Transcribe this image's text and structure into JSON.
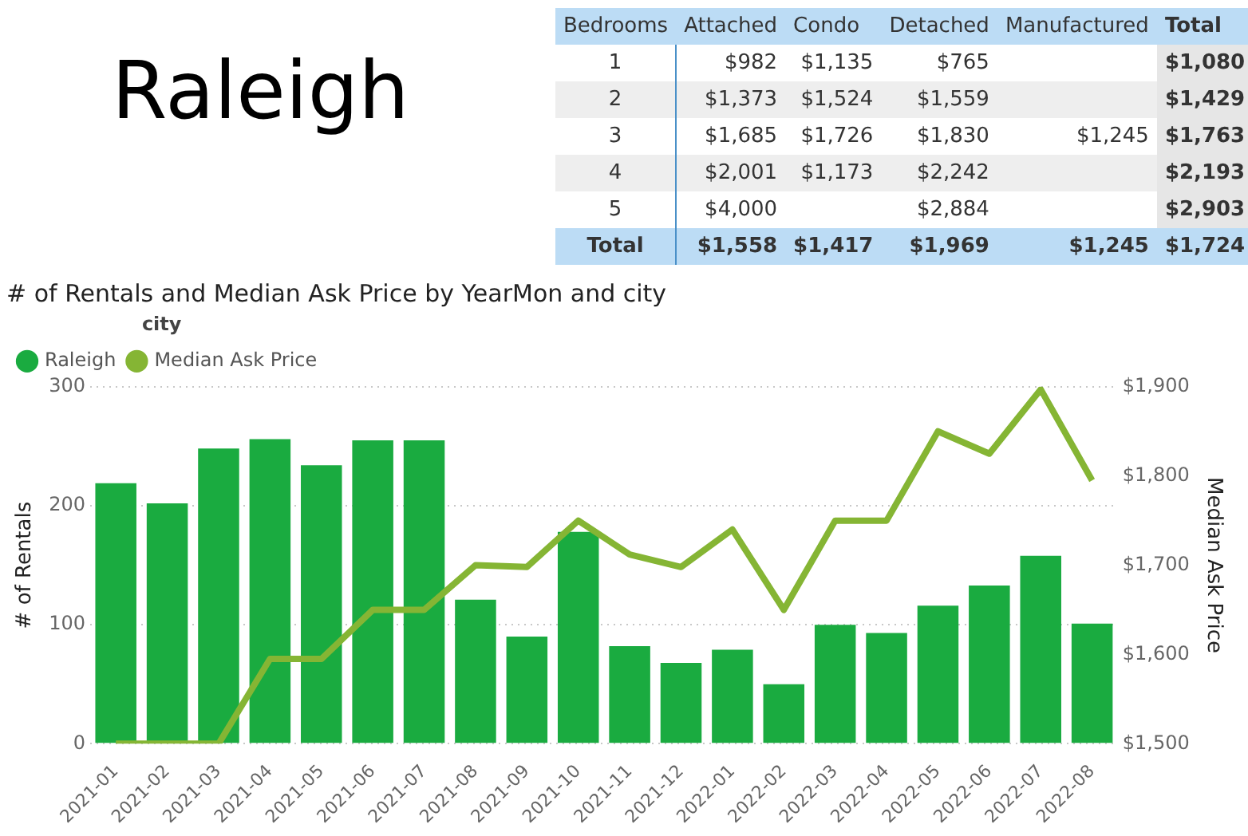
{
  "chart_data": [
    {
      "type": "other",
      "title": "Raleigh"
    },
    {
      "type": "heatmap",
      "ylabel": "Bedrooms",
      "categories": [
        "Attached",
        "Condo",
        "Detached",
        "Manufactured",
        "Total"
      ],
      "y_categories": [
        "1",
        "2",
        "3",
        "4",
        "5",
        "Total"
      ],
      "cells": [
        [
          "$982",
          "$1,135",
          "$765",
          null,
          "$1,080"
        ],
        [
          "$1,373",
          "$1,524",
          "$1,559",
          null,
          "$1,429"
        ],
        [
          "$1,685",
          "$1,726",
          "$1,830",
          "$1,245",
          "$1,763"
        ],
        [
          "$2,001",
          "$1,173",
          "$2,242",
          null,
          "$2,193"
        ],
        [
          "$4,000",
          null,
          "$2,884",
          null,
          "$2,903"
        ],
        [
          "$1,558",
          "$1,417",
          "$1,969",
          "$1,245",
          "$1,724"
        ]
      ]
    },
    {
      "type": "bar",
      "title": "# of Rentals and Median Ask Price by YearMon and city",
      "ylabel": "# of Rentals",
      "y2label": "Median Ask Price",
      "legend_title": "city",
      "legend": "top left",
      "grid": "y",
      "marker": "none",
      "categories": [
        "2021-01",
        "2021-02",
        "2021-03",
        "2021-04",
        "2021-05",
        "2021-06",
        "2021-07",
        "2021-08",
        "2021-09",
        "2021-10",
        "2021-11",
        "2021-12",
        "2022-01",
        "2022-02",
        "2022-03",
        "2022-04",
        "2022-05",
        "2022-06",
        "2022-07",
        "2022-08"
      ],
      "series": [
        {
          "name": "Raleigh",
          "type": "bar",
          "color": "#1aab40",
          "values": [
            219,
            202,
            248,
            256,
            234,
            255,
            255,
            121,
            90,
            178,
            82,
            68,
            79,
            50,
            100,
            93,
            116,
            133,
            158,
            101
          ]
        },
        {
          "name": "Median Ask Price",
          "type": "line",
          "axis": "y2",
          "color": "#85b534",
          "values": [
            1500,
            1500,
            1500,
            1595,
            1595,
            1650,
            1650,
            1700,
            1698,
            1750,
            1712,
            1698,
            1740,
            1650,
            1750,
            1750,
            1850,
            1825,
            1897,
            1795
          ]
        }
      ],
      "ylim": [
        0,
        300
      ],
      "yticks": [
        0,
        100,
        200,
        300
      ],
      "y2lim": [
        1500,
        1900
      ],
      "y2ticks": [
        {
          "value": 1500,
          "label": "$1,500"
        },
        {
          "value": 1600,
          "label": "$1,600"
        },
        {
          "value": 1700,
          "label": "$1,700"
        },
        {
          "value": 1800,
          "label": "$1,800"
        },
        {
          "value": 1900,
          "label": "$1,900"
        }
      ]
    }
  ]
}
